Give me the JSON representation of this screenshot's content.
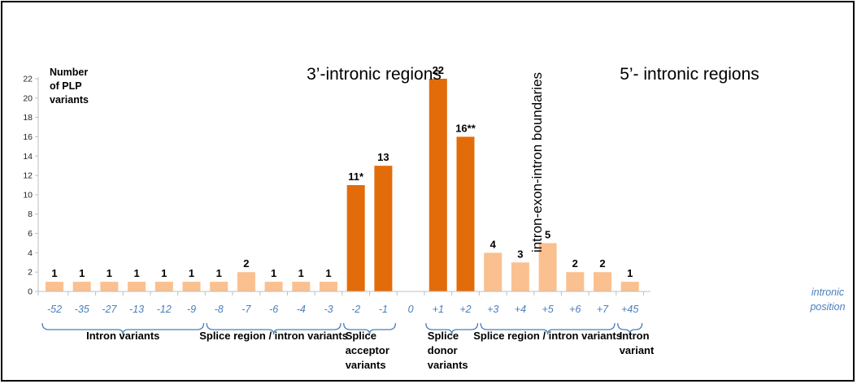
{
  "chart_data": {
    "type": "bar",
    "ylabel_lines": [
      "Number",
      "of PLP",
      "variants"
    ],
    "xlabel_lines": [
      "intronic",
      "position"
    ],
    "ylim": [
      0,
      22
    ],
    "yticks": [
      0,
      2,
      4,
      6,
      8,
      10,
      12,
      14,
      16,
      18,
      20,
      22
    ],
    "grid": false,
    "colors": {
      "dark": "#e36c0a",
      "light": "#fac090",
      "brace": "#4a7ebb",
      "axis": "#bfbfbf"
    },
    "categories": [
      "-52",
      "-35",
      "-27",
      "-13",
      "-12",
      "-9",
      "-8",
      "-7",
      "-6",
      "-4",
      "-3",
      "-2",
      "-1",
      "0",
      "+1",
      "+2",
      "+3",
      "+4",
      "+5",
      "+6",
      "+7",
      "+45"
    ],
    "values": [
      1,
      1,
      1,
      1,
      1,
      1,
      1,
      2,
      1,
      1,
      1,
      11,
      13,
      null,
      22,
      16,
      4,
      3,
      5,
      2,
      2,
      1
    ],
    "value_labels": [
      "1",
      "1",
      "1",
      "1",
      "1",
      "1",
      "1",
      "2",
      "1",
      "1",
      "1",
      "11*",
      "13",
      "",
      "22",
      "16**",
      "4",
      "3",
      "5",
      "2",
      "2",
      "1"
    ],
    "highlight": [
      false,
      false,
      false,
      false,
      false,
      false,
      false,
      false,
      false,
      false,
      false,
      true,
      true,
      false,
      true,
      true,
      false,
      false,
      false,
      false,
      false,
      false
    ],
    "annotations": {
      "left_region": "3’-intronic regions",
      "right_region": "5’- intronic regions",
      "boundary": "intron-exon-intron boundaries"
    },
    "groups": [
      {
        "label_lines": [
          "Intron variants"
        ],
        "from": 0,
        "to": 5
      },
      {
        "label_lines": [
          "Splice region / intron variants"
        ],
        "from": 6,
        "to": 10
      },
      {
        "label_lines": [
          "Splice",
          "acceptor",
          "variants"
        ],
        "from": 11,
        "to": 12
      },
      {
        "label_lines": [
          "Splice",
          "donor",
          "variants"
        ],
        "from": 14,
        "to": 15
      },
      {
        "label_lines": [
          "Splice region / intron variants"
        ],
        "from": 16,
        "to": 20
      },
      {
        "label_lines": [
          "Intron",
          "variant"
        ],
        "from": 21,
        "to": 21
      }
    ]
  }
}
